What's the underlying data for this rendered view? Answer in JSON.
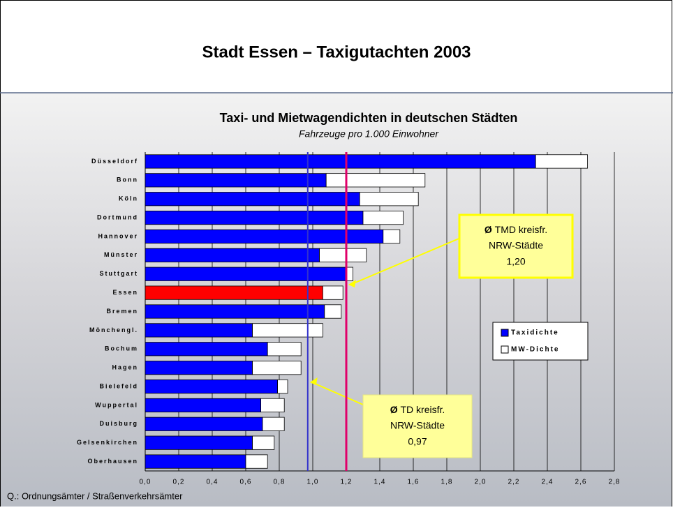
{
  "slide": {
    "title": "Stadt Essen – Taxigutachten 2003",
    "source": "Q.: Ordnungsämter / Straßenverkehrsämter"
  },
  "chart_data": {
    "type": "stacked-barh",
    "title": "Taxi- und Mietwagendichten in deutschen Städten",
    "subtitle": "Fahrzeuge pro 1.000 Einwohner",
    "categories": [
      "Düsseldorf",
      "Bonn",
      "Köln",
      "Dortmund",
      "Hannover",
      "Münster",
      "Stuttgart",
      "Essen",
      "Bremen",
      "Mönchengl.",
      "Bochum",
      "Hagen",
      "Bielefeld",
      "Wuppertal",
      "Duisburg",
      "Gelsenkirchen",
      "Oberhausen"
    ],
    "series": [
      {
        "name": "Taxidichte",
        "color": "#0000ff",
        "colors": [
          "#0000ff",
          "#0000ff",
          "#0000ff",
          "#0000ff",
          "#0000ff",
          "#0000ff",
          "#0000ff",
          "#ff0000",
          "#0000ff",
          "#0000ff",
          "#0000ff",
          "#0000ff",
          "#0000ff",
          "#0000ff",
          "#0000ff",
          "#0000ff",
          "#0000ff"
        ],
        "values": [
          2.33,
          1.08,
          1.28,
          1.3,
          1.42,
          1.04,
          1.2,
          1.06,
          1.07,
          0.64,
          0.73,
          0.64,
          0.79,
          0.69,
          0.7,
          0.64,
          0.6
        ]
      },
      {
        "name": "MW-Dichte",
        "color": "#ffffff",
        "values": [
          0.31,
          0.59,
          0.35,
          0.24,
          0.1,
          0.28,
          0.04,
          0.12,
          0.1,
          0.42,
          0.2,
          0.29,
          0.06,
          0.14,
          0.13,
          0.13,
          0.13
        ]
      }
    ],
    "xlim": [
      0,
      2.8
    ],
    "xticks": [
      {
        "value": 0,
        "label": "0,0"
      },
      {
        "value": 0.2,
        "label": "0,2"
      },
      {
        "value": 0.4,
        "label": "0,4"
      },
      {
        "value": 0.6,
        "label": "0,6"
      },
      {
        "value": 0.8,
        "label": "0,8"
      },
      {
        "value": 1,
        "label": "1,0"
      },
      {
        "value": 1.2,
        "label": "1,2"
      },
      {
        "value": 1.4,
        "label": "1,4"
      },
      {
        "value": 1.6,
        "label": "1,6"
      },
      {
        "value": 1.8,
        "label": "1,8"
      },
      {
        "value": 2,
        "label": "2,0"
      },
      {
        "value": 2.2,
        "label": "2,2"
      },
      {
        "value": 2.4,
        "label": "2,4"
      },
      {
        "value": 2.6,
        "label": "2,6"
      },
      {
        "value": 2.8,
        "label": "2,8"
      }
    ],
    "grid": true,
    "legend": "right",
    "reference_lines": [
      {
        "value": 0.97,
        "color": "#3333cc",
        "symbol": "Ø",
        "label": [
          "TD kreisfr.",
          "NRW-Städte"
        ],
        "value_label": "0,97",
        "box_color": "#ffff99",
        "border_color": "#e6e680"
      },
      {
        "value": 1.2,
        "color": "#e0006a",
        "symbol": "Ø",
        "label": [
          "TMD kreisfr.",
          "NRW-Städte"
        ],
        "value_label": "1,20",
        "box_color": "#ffff99",
        "border_color": "#ffff00"
      }
    ]
  }
}
